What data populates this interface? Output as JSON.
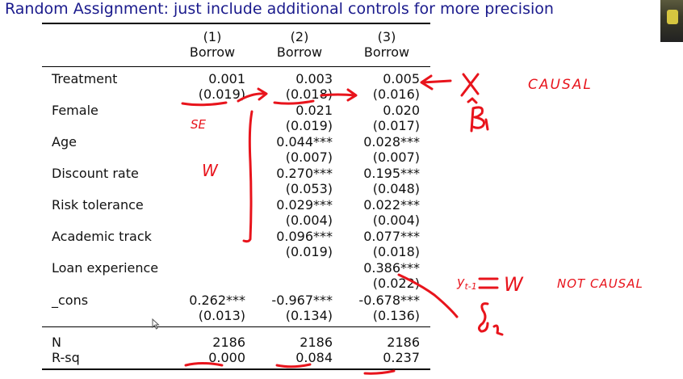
{
  "slide": {
    "title": "Random Assignment: just include additional controls for more precision"
  },
  "table": {
    "col_numbers": [
      "(1)",
      "(2)",
      "(3)"
    ],
    "col_names": [
      "Borrow",
      "Borrow",
      "Borrow"
    ],
    "rows": [
      {
        "label": "Treatment",
        "coef": [
          "0.001",
          "0.003",
          "0.005"
        ],
        "se": [
          "(0.019)",
          "(0.018)",
          "(0.016)"
        ]
      },
      {
        "label": "Female",
        "coef": [
          "",
          "0.021",
          "0.020"
        ],
        "se": [
          "",
          "(0.019)",
          "(0.017)"
        ]
      },
      {
        "label": "Age",
        "coef": [
          "",
          "0.044***",
          "0.028***"
        ],
        "se": [
          "",
          "(0.007)",
          "(0.007)"
        ]
      },
      {
        "label": "Discount rate",
        "coef": [
          "",
          "0.270***",
          "0.195***"
        ],
        "se": [
          "",
          "(0.053)",
          "(0.048)"
        ]
      },
      {
        "label": "Risk tolerance",
        "coef": [
          "",
          "0.029***",
          "0.022***"
        ],
        "se": [
          "",
          "(0.004)",
          "(0.004)"
        ]
      },
      {
        "label": "Academic track",
        "coef": [
          "",
          "0.096***",
          "0.077***"
        ],
        "se": [
          "",
          "(0.019)",
          "(0.018)"
        ]
      },
      {
        "label": "Loan experience",
        "coef": [
          "",
          "",
          "0.386***"
        ],
        "se": [
          "",
          "",
          "(0.022)"
        ]
      },
      {
        "label": "_cons",
        "coef": [
          "0.262***",
          "-0.967***",
          "-0.678***"
        ],
        "se": [
          "(0.013)",
          "(0.134)",
          "(0.136)"
        ]
      }
    ],
    "stats": [
      {
        "label": "N",
        "values": [
          "2186",
          "2186",
          "2186"
        ]
      },
      {
        "label": "R-sq",
        "values": [
          "0.000",
          "0.084",
          "0.237"
        ]
      }
    ]
  },
  "annotations": {
    "causal": "CAUSAL",
    "not_causal": "NOT CAUSAL",
    "se": "SE",
    "w": "W",
    "x": "X",
    "beta1": "β1",
    "delta2": "δ2",
    "y_lag": "yt-1 = W",
    "ink_color": "#e8141c"
  }
}
